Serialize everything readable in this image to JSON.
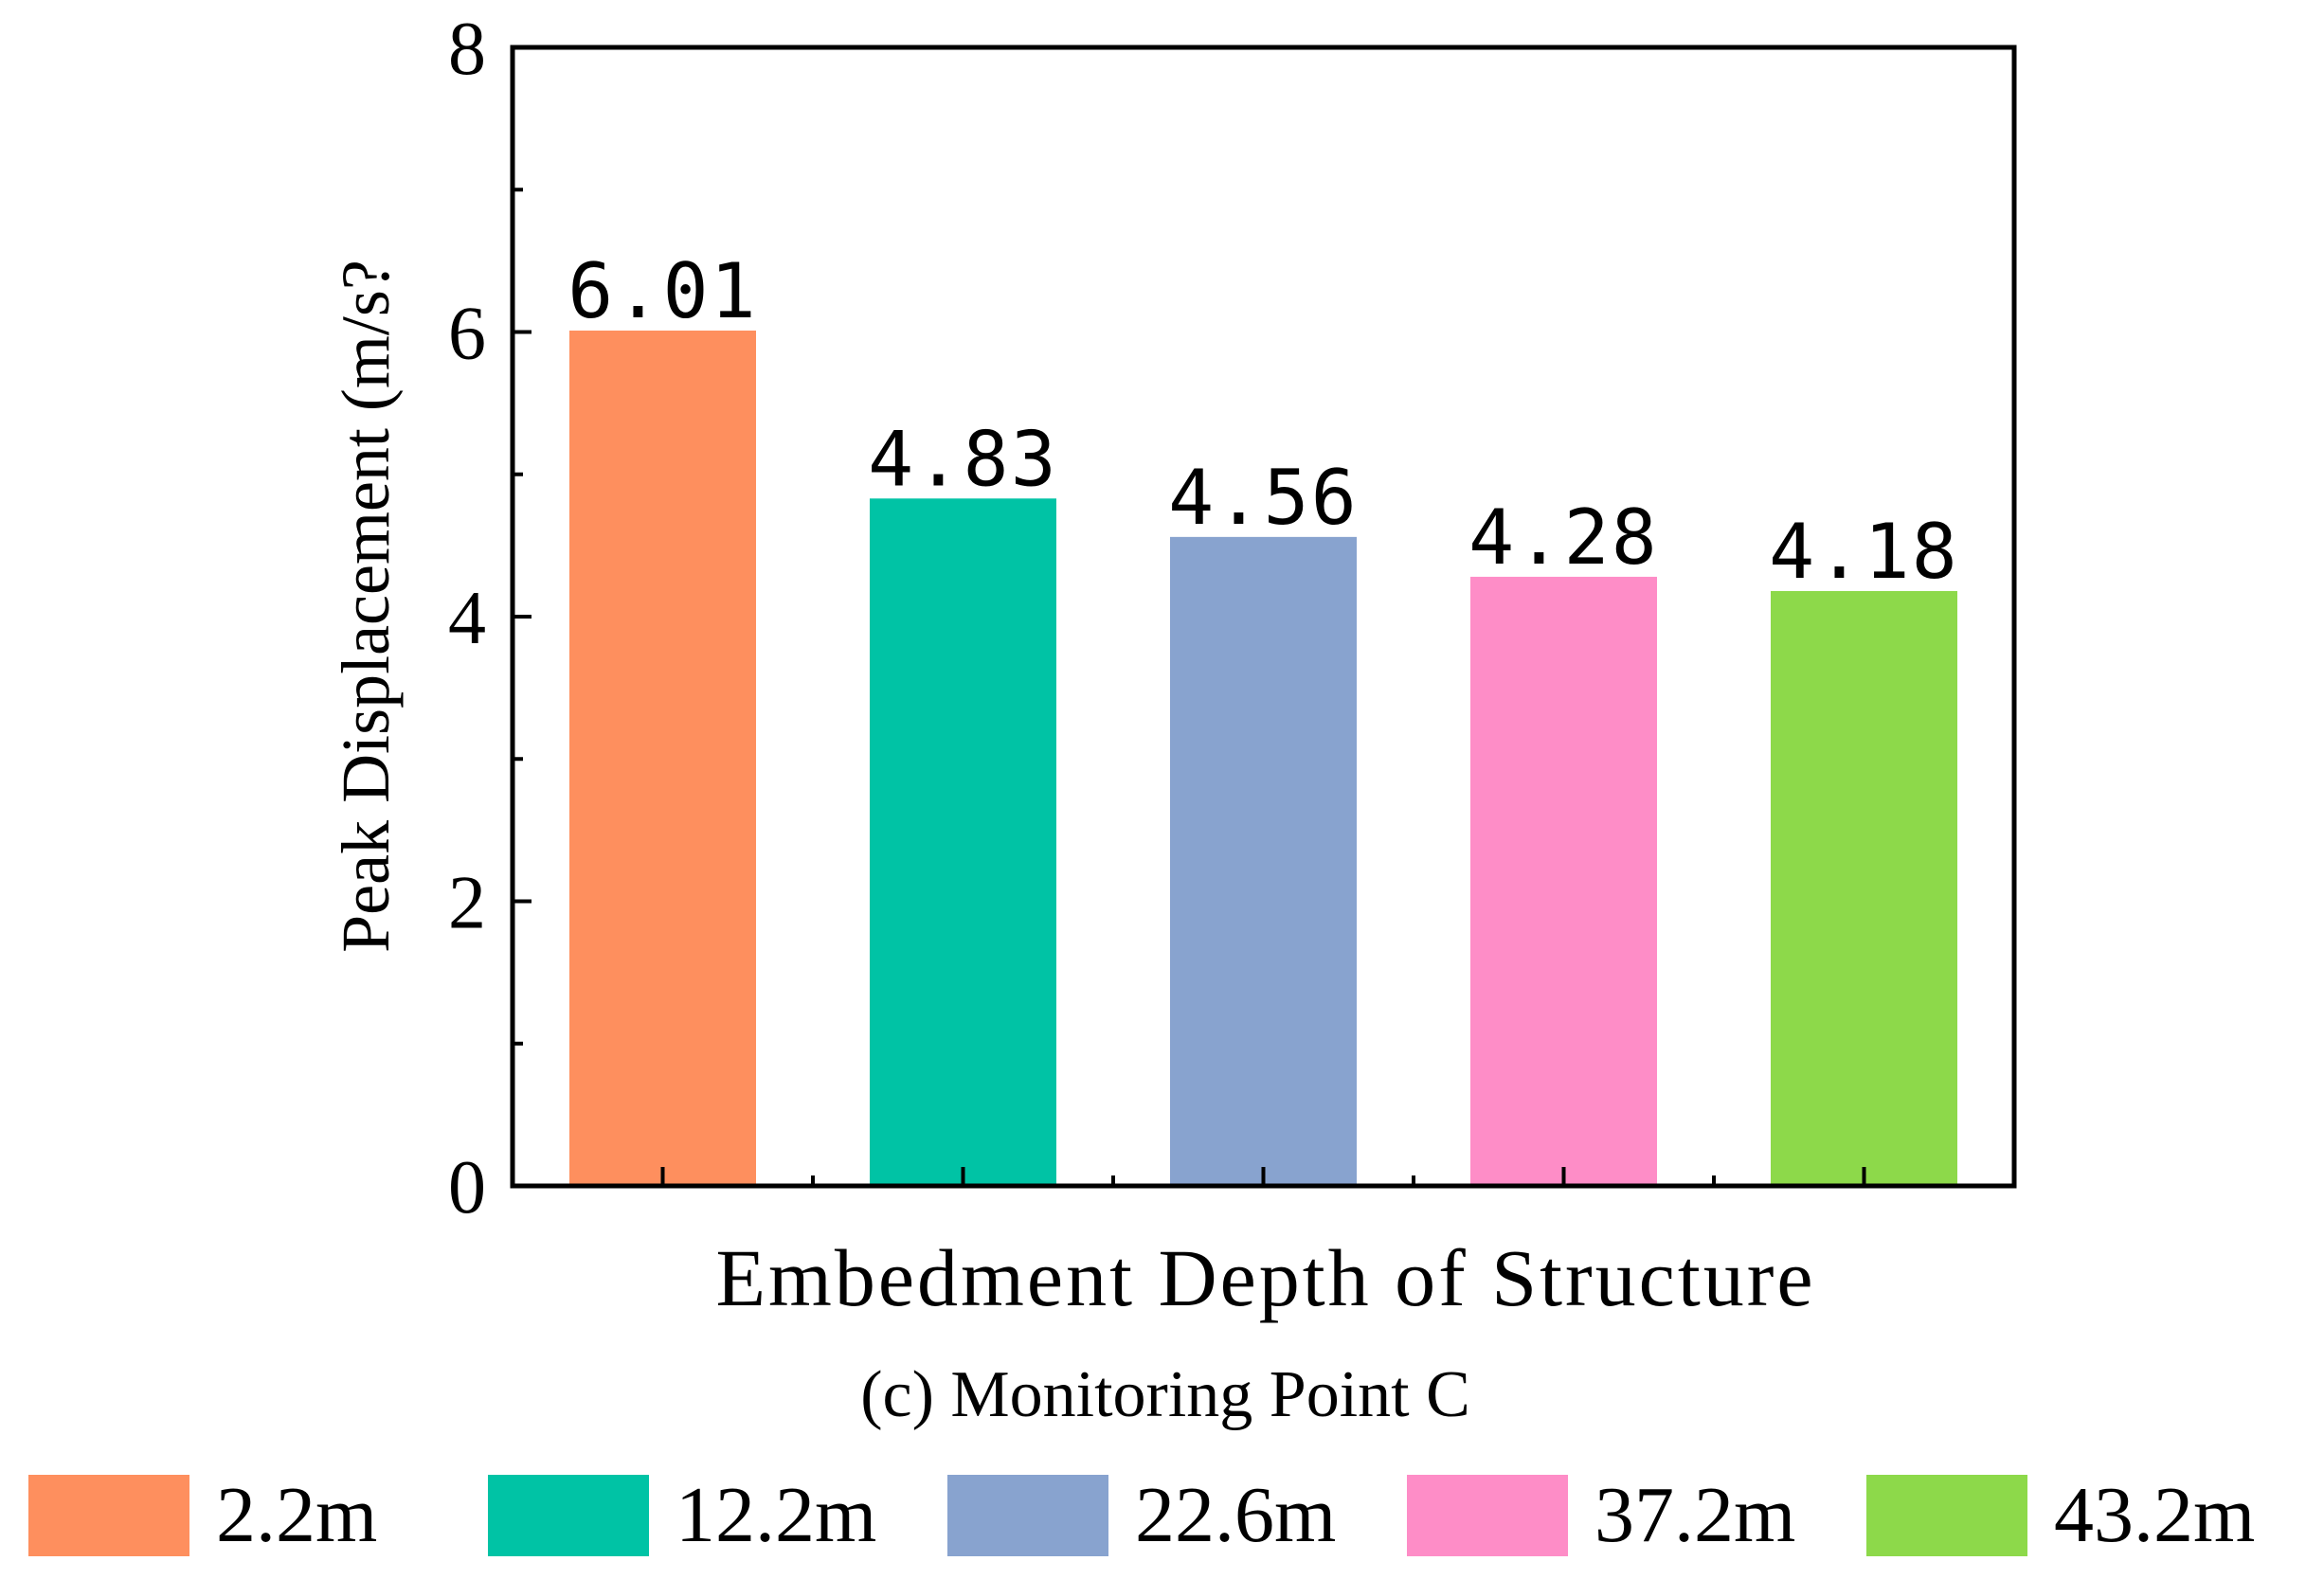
{
  "chart_data": {
    "type": "bar",
    "title": "",
    "caption": "(c) Monitoring Point C",
    "xlabel": "Embedment Depth of Structure",
    "ylabel": "Peak Displacement (m/s?",
    "ylim": [
      0,
      8
    ],
    "yticks": [
      0,
      2,
      4,
      6,
      8
    ],
    "yticks_minor": [
      1,
      3,
      5,
      7
    ],
    "grid": false,
    "legend_position": "bottom",
    "categories": [
      "2.2m",
      "12.2m",
      "22.6m",
      "37.2m",
      "43.2m"
    ],
    "values": [
      6.01,
      4.83,
      4.56,
      4.28,
      4.18
    ],
    "data_labels": [
      "6.01",
      "4.83",
      "4.56",
      "4.28",
      "4.18"
    ],
    "colors": [
      "#fe8f5e",
      "#00c3a5",
      "#88a3cf",
      "#fe8dc7",
      "#8dd94a"
    ]
  }
}
